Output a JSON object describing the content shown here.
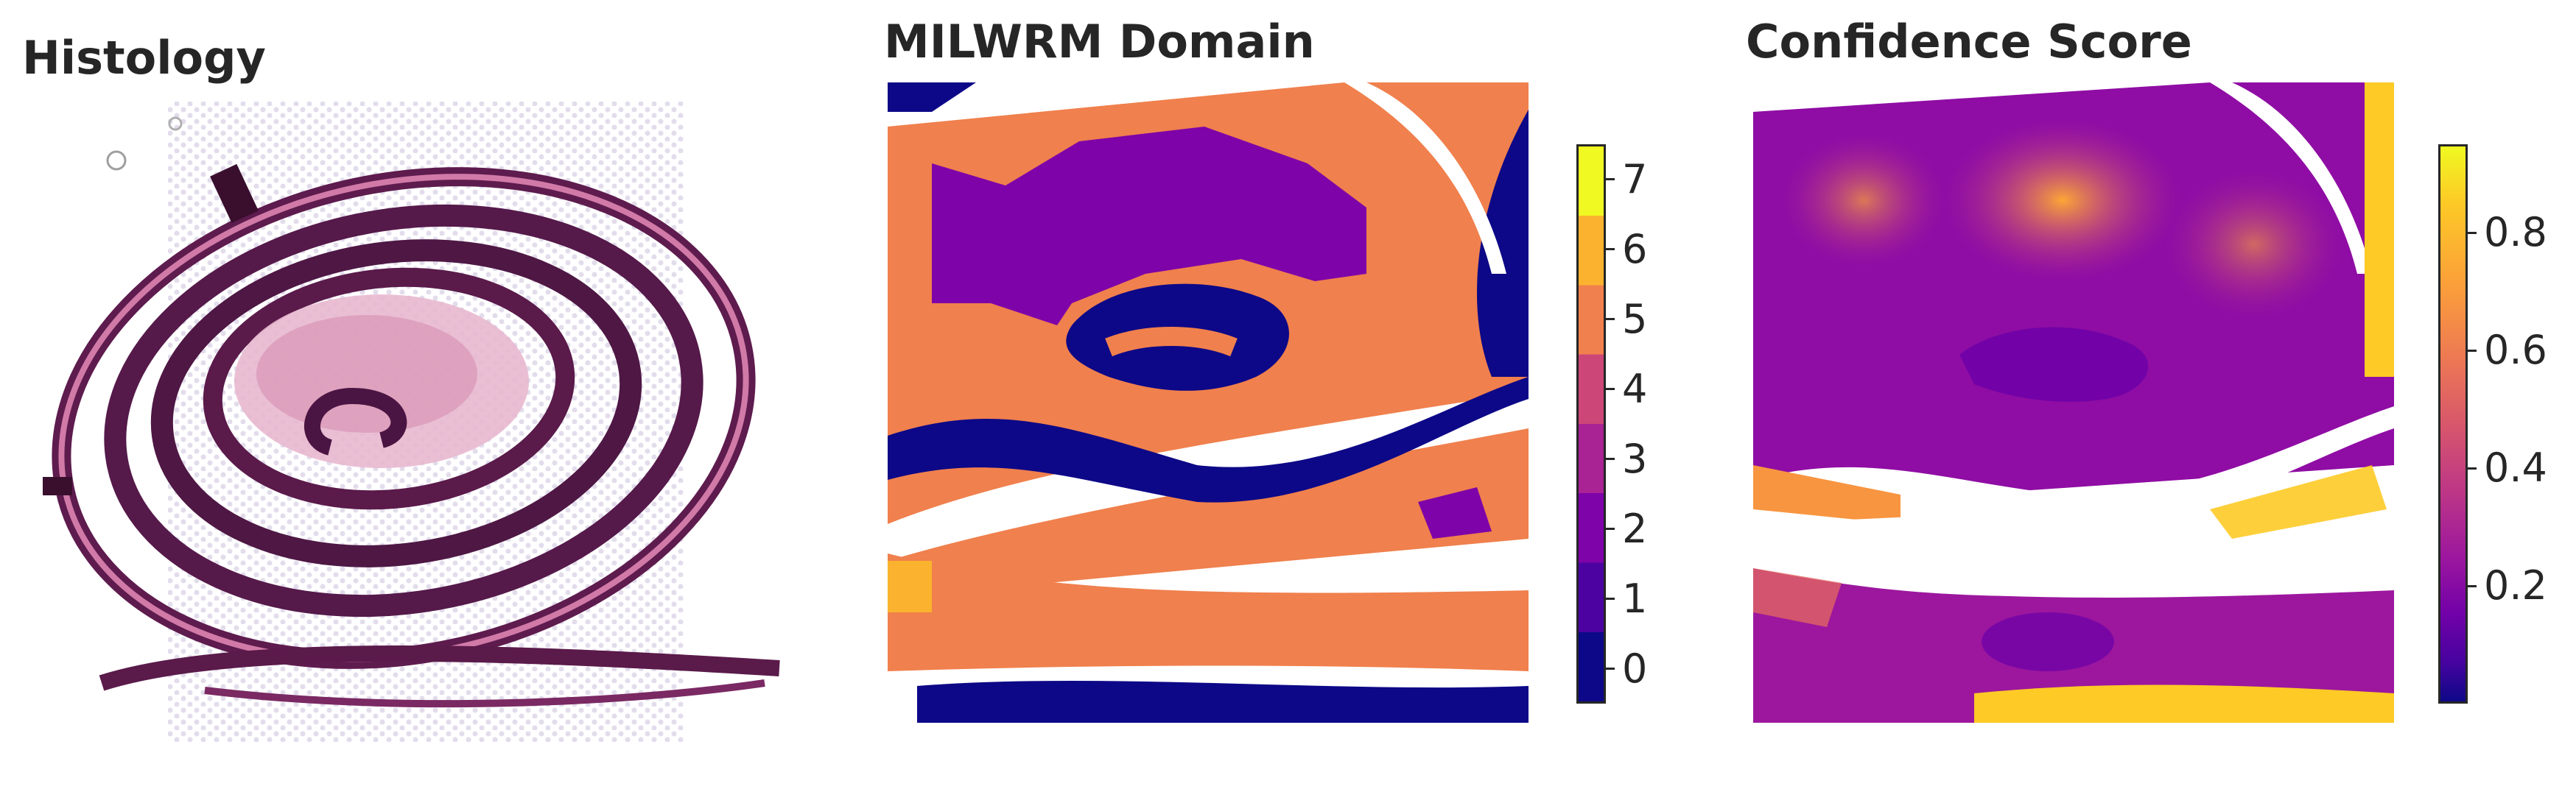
{
  "figure": {
    "panels": [
      {
        "title": "Histology"
      },
      {
        "title": "MILWRM Domain"
      },
      {
        "title": "Confidence Score"
      }
    ]
  },
  "chart_data": [
    {
      "type": "image",
      "title": "Histology",
      "description_colors": {
        "tissue_dark": "#5a1a4a",
        "tissue_pink": "#c9789f",
        "spots": "#d7cfe3",
        "background": "#ffffff"
      }
    },
    {
      "type": "heatmap",
      "title": "MILWRM Domain",
      "colormap": "plasma",
      "colorbar": {
        "ticks": [
          0,
          1,
          2,
          3,
          4,
          5,
          6,
          7
        ],
        "tick_labels": [
          "0",
          "1",
          "2",
          "3",
          "4",
          "5",
          "6",
          "7"
        ],
        "range": [
          -0.5,
          7.5
        ],
        "discrete_colors": [
          "#0d0887",
          "#4c02a1",
          "#7e03a8",
          "#a92395",
          "#cc4778",
          "#f0804d",
          "#fbb32f",
          "#f0f921"
        ]
      },
      "dominant_domains": [
        0,
        2,
        5,
        6
      ]
    },
    {
      "type": "heatmap",
      "title": "Confidence Score",
      "colormap": "plasma",
      "colorbar": {
        "ticks": [
          0.2,
          0.4,
          0.6,
          0.8
        ],
        "tick_labels": [
          "0.2",
          "0.4",
          "0.6",
          "0.8"
        ],
        "range": [
          0.0,
          0.95
        ]
      }
    }
  ]
}
